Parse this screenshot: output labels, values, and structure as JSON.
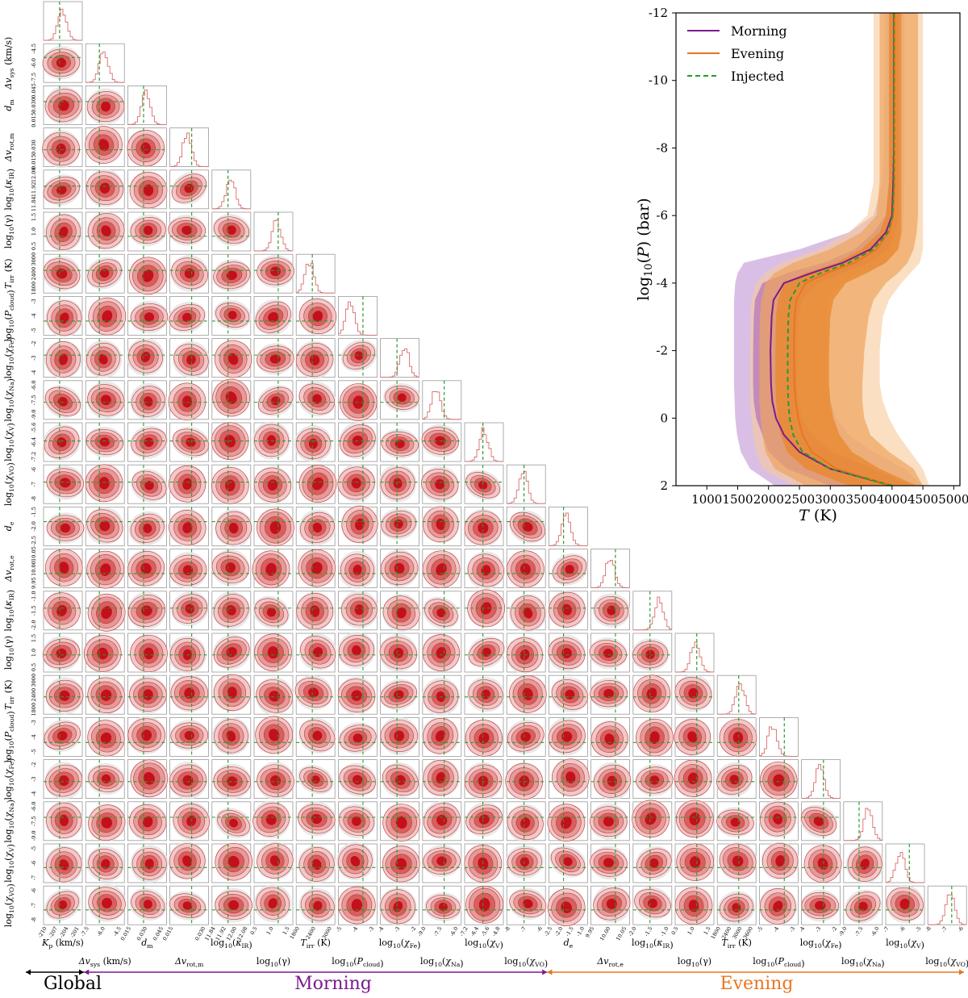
{
  "chart_data": [
    {
      "type": "corner",
      "parameters": [
        {
          "label": "K_p (km/s)",
          "ticks": [
            "-210",
            "-207",
            "-204",
            "-201"
          ],
          "injected": -204
        },
        {
          "label": "Δv_sys (km/s)",
          "ticks": [
            "-7.5",
            "-6.0",
            "-4.5"
          ],
          "injected": -6.0
        },
        {
          "label": "d_m",
          "ticks": [
            "0.015",
            "0.030",
            "0.045"
          ],
          "injected": 0.015
        },
        {
          "label": "Δv_rot,m",
          "ticks": [
            "0.015",
            "0.030"
          ],
          "injected": 0.015
        },
        {
          "label": "log10(κ_IR)",
          "ticks": [
            "11.84",
            "11.92",
            "12.00",
            "12.08"
          ],
          "injected": 12.0
        },
        {
          "label": "log10(γ)",
          "ticks": [
            "0.5",
            "1.0",
            "1.5"
          ],
          "injected": 1.0
        },
        {
          "label": "T_irr (K)",
          "ticks": [
            "1800",
            "2400",
            "3000"
          ],
          "injected": 2400
        },
        {
          "label": "log10(P_cloud)",
          "ticks": [
            "-5",
            "-4",
            "-3"
          ],
          "injected": -4
        },
        {
          "label": "log10(χ_Fe)",
          "ticks": [
            "-4",
            "-3",
            "-2"
          ],
          "injected": -3
        },
        {
          "label": "log10(χ_Na)",
          "ticks": [
            "-9.0",
            "-7.5",
            "-6.0"
          ],
          "injected": -6.0
        },
        {
          "label": "log10(χ_V)",
          "ticks": [
            "-7.2",
            "-6.4",
            "-5.6",
            "-4.8"
          ],
          "injected": -6.0
        },
        {
          "label": "log10(χ_VO)",
          "ticks": [
            "-8",
            "-7",
            "-6"
          ],
          "injected": -7
        },
        {
          "label": "d_e",
          "ticks": [
            "-2.5",
            "-2.0",
            "-1.5",
            "-1.0"
          ],
          "injected": -1.0
        },
        {
          "label": "Δv_rot,e",
          "ticks": [
            "9.95",
            "10.00",
            "10.05"
          ],
          "injected": 10.0
        },
        {
          "label": "log10(κ_IR)",
          "ticks": [
            "-2.0",
            "-1.5",
            "-1.0"
          ],
          "injected": -1.0
        },
        {
          "label": "log10(γ)",
          "ticks": [
            "0.5",
            "1.0",
            "1.5"
          ],
          "injected": 0.5
        },
        {
          "label": "T_irr (K)",
          "ticks": [
            "1800",
            "2400",
            "3000",
            "3600"
          ],
          "injected": 2400
        },
        {
          "label": "log10(P_cloud)",
          "ticks": [
            "-5",
            "-4",
            "-3"
          ],
          "injected": -4
        },
        {
          "label": "log10(χ_Fe)",
          "ticks": [
            "-4",
            "-3",
            "-2"
          ],
          "injected": -3
        },
        {
          "label": "log10(χ_Na)",
          "ticks": [
            "-9.0",
            "-7.5",
            "-6.0"
          ],
          "injected": -6.0
        },
        {
          "label": "log10(χ_V)",
          "ticks": [
            "-7",
            "-6",
            "-5"
          ],
          "injected": -6
        },
        {
          "label": "log10(χ_VO)",
          "ticks": [
            "-8",
            "-7",
            "-6"
          ],
          "injected": -7
        }
      ],
      "groups": [
        {
          "name": "Global",
          "from": 0,
          "to": 0,
          "color": "#000000"
        },
        {
          "name": "Morning",
          "from": 1,
          "to": 11,
          "color": "#7b1a8e"
        },
        {
          "name": "Evening",
          "from": 12,
          "to": 21,
          "color": "#e8761f"
        }
      ],
      "contour_colors": [
        "#f3c8c8",
        "#e69a9a",
        "#d95f5f",
        "#c40f1c"
      ],
      "injected_color": "#2a9a2a"
    },
    {
      "type": "line",
      "xlabel": "T (K)",
      "ylabel": "log10(P) (bar)",
      "xlim": [
        500,
        5100
      ],
      "ylim": [
        2,
        -12
      ],
      "xticks": [
        1000,
        1500,
        2000,
        2500,
        3000,
        3500,
        4000,
        4500,
        5000
      ],
      "yticks": [
        2,
        0,
        -2,
        -4,
        -6,
        -8,
        -10,
        -12
      ],
      "legend_position": "top-left",
      "series": [
        {
          "name": "Morning",
          "color": "#7b1a8e",
          "logP": [
            2,
            1.5,
            1,
            0.5,
            0,
            -0.5,
            -1,
            -2,
            -3,
            -3.5,
            -4,
            -4.3,
            -4.6,
            -5.0,
            -5.5,
            -6.0,
            -7,
            -8,
            -10,
            -12
          ],
          "T": [
            4000,
            3000,
            2500,
            2250,
            2120,
            2060,
            2040,
            2030,
            2050,
            2080,
            2250,
            2700,
            3200,
            3650,
            3900,
            4000,
            4020,
            4030,
            4030,
            4030
          ],
          "band1_lo": [
            3000,
            2300,
            2000,
            1900,
            1800,
            1760,
            1750,
            1750,
            1760,
            1780,
            1900,
            2300,
            2900,
            3400,
            3700,
            3900,
            3950,
            3960,
            3960,
            3960
          ],
          "band1_hi": [
            4300,
            3700,
            3050,
            2700,
            2550,
            2480,
            2460,
            2460,
            2480,
            2550,
            2800,
            3200,
            3650,
            3950,
            4050,
            4100,
            4100,
            4100,
            4100,
            4100
          ],
          "band2_lo": [
            2100,
            1700,
            1550,
            1490,
            1460,
            1450,
            1440,
            1440,
            1440,
            1440,
            1460,
            1500,
            1600,
            2500,
            3300,
            3700,
            3850,
            3870,
            3880,
            3880
          ],
          "band2_hi": [
            4500,
            4200,
            3700,
            3300,
            3100,
            3000,
            2950,
            2950,
            2950,
            2980,
            3150,
            3500,
            3900,
            4100,
            4180,
            4190,
            4200,
            4200,
            4200,
            4200
          ]
        },
        {
          "name": "Evening",
          "color": "#e8761f",
          "logP": [
            2,
            1.5,
            1,
            0.5,
            0,
            -0.5,
            -1,
            -2,
            -3,
            -3.5,
            -4,
            -4.3,
            -4.6,
            -5.0,
            -5.5,
            -6.0,
            -7,
            -8,
            -10,
            -12
          ],
          "T": [
            4000,
            3100,
            2700,
            2550,
            2480,
            2440,
            2420,
            2410,
            2420,
            2450,
            2600,
            2950,
            3400,
            3750,
            3950,
            4020,
            4040,
            4040,
            4040,
            4040
          ],
          "band1_lo": [
            3300,
            2600,
            2300,
            2200,
            2150,
            2120,
            2110,
            2110,
            2120,
            2150,
            2250,
            2600,
            3100,
            3500,
            3800,
            3900,
            3950,
            3950,
            3950,
            3950
          ],
          "band1_hi": [
            4400,
            3800,
            3350,
            3150,
            3050,
            3000,
            2980,
            2980,
            3000,
            3050,
            3250,
            3600,
            3900,
            4100,
            4150,
            4150,
            4150,
            4150,
            4150,
            4150
          ],
          "band2_lo": [
            2600,
            2100,
            1950,
            1900,
            1870,
            1850,
            1850,
            1850,
            1860,
            1880,
            1950,
            2100,
            2400,
            3000,
            3500,
            3750,
            3800,
            3800,
            3800,
            3800
          ],
          "band2_hi": [
            4500,
            4350,
            3950,
            3650,
            3550,
            3520,
            3520,
            3550,
            3620,
            3700,
            3900,
            4100,
            4250,
            4350,
            4400,
            4420,
            4420,
            4420,
            4420,
            4420
          ],
          "band3_lo": [
            2400,
            1900,
            1800,
            1750,
            1720,
            1700,
            1700,
            1700,
            1710,
            1720,
            1800,
            1950,
            2200,
            2800,
            3300,
            3600,
            3700,
            3700,
            3700,
            3700
          ],
          "band3_hi": [
            4600,
            4500,
            4300,
            4100,
            3950,
            3850,
            3800,
            3800,
            3850,
            3950,
            4150,
            4300,
            4450,
            4500,
            4500,
            4500,
            4500,
            4500,
            4500,
            4500
          ]
        },
        {
          "name": "Injected",
          "color": "#2a9a2a",
          "dashed": true,
          "logP": [
            2,
            1.5,
            1,
            0.5,
            0,
            -0.5,
            -1,
            -2,
            -3,
            -3.5,
            -4,
            -4.3,
            -4.6,
            -5.0,
            -5.5,
            -6.0,
            -7,
            -8,
            -10,
            -12
          ],
          "T": [
            4000,
            3000,
            2550,
            2400,
            2340,
            2320,
            2310,
            2310,
            2320,
            2350,
            2500,
            2850,
            3300,
            3700,
            3930,
            4010,
            4030,
            4030,
            4030,
            4030
          ]
        }
      ]
    }
  ],
  "axis_labels": {
    "bottom": [
      "K_p (km/s)",
      "Δv_sys (km/s)",
      "d_m",
      "Δv_rot,m",
      "log10(κ_IR)",
      "log10(γ)",
      "T_irr (K)",
      "log10(P_cloud)",
      "log10(χ_Fe)",
      "log10(χ_Na)",
      "log10(χ_V)",
      "log10(χ_VO)",
      "d_e",
      "Δv_rot,e",
      "log10(κ_IR)",
      "log10(γ)",
      "T_irr (K)",
      "log10(P_cloud)",
      "log10(χ_Fe)",
      "log10(χ_Na)",
      "log10(χ_V)",
      "log10(χ_VO)"
    ],
    "left": [
      "Δv_sys (km/s)",
      "d_m",
      "Δv_rot,m",
      "log10(κ_IR)",
      "log10(γ)",
      "T_irr (K)",
      "log10(P_cloud)",
      "log10(χ_Fe)",
      "log10(χ_Na)",
      "log10(χ_V)",
      "log10(χ_VO)",
      "d_e",
      "Δv_rot,e",
      "log10(κ_IR)",
      "log10(γ)",
      "T_irr (K)",
      "log10(P_cloud)",
      "log10(χ_Fe)",
      "log10(χ_Na)",
      "log10(χ_V)",
      "log10(χ_VO)"
    ]
  },
  "group_labels": {
    "global": "Global",
    "morning": "Morning",
    "evening": "Evening"
  },
  "legend": {
    "morning": "Morning",
    "evening": "Evening",
    "injected": "Injected"
  }
}
